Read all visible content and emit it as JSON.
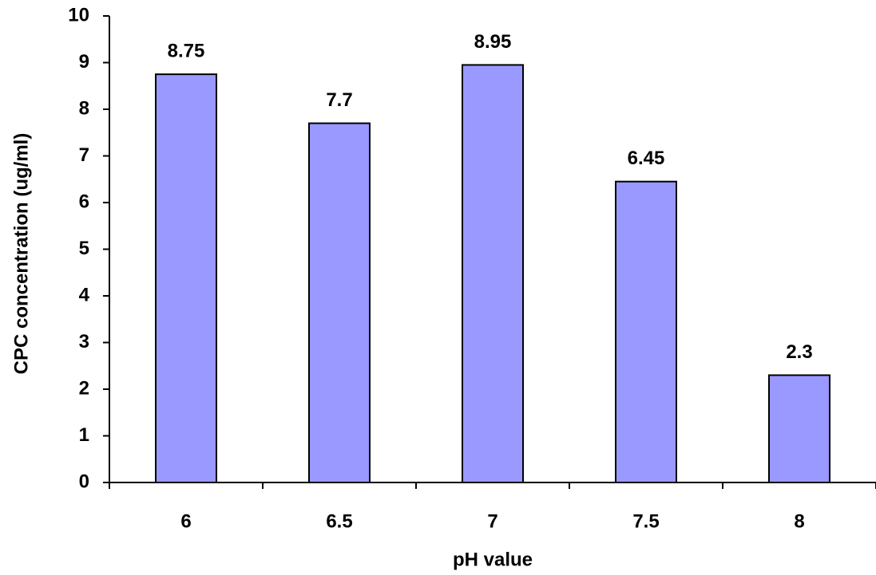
{
  "chart_data": {
    "type": "bar",
    "categories": [
      "6",
      "6.5",
      "7",
      "7.5",
      "8"
    ],
    "values": [
      8.75,
      7.7,
      8.95,
      6.45,
      2.3
    ],
    "color": "#9999ff",
    "x_label": "pH value",
    "y_label": "CPC concentration (ug/ml)",
    "ylim": [
      0,
      10
    ],
    "yticks": [
      0,
      1,
      2,
      3,
      4,
      5,
      6,
      7,
      8,
      9,
      10
    ],
    "grid": false
  }
}
